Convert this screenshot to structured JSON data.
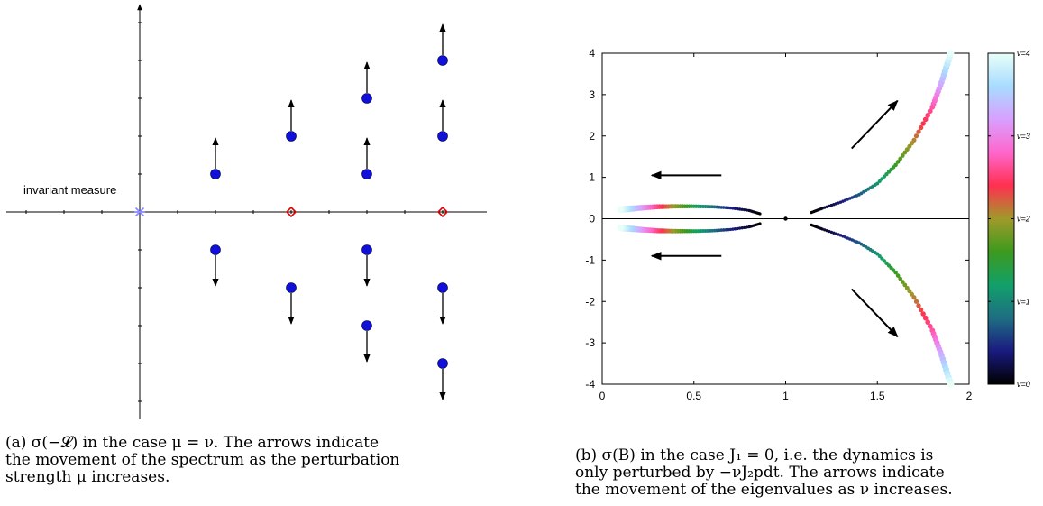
{
  "chart_data": [
    {
      "type": "scatter",
      "title": "",
      "annotation": "invariant measure",
      "invariant_point": {
        "x": 0,
        "y": 0,
        "marker": "asterisk",
        "color": "#8c8cff"
      },
      "real_points": {
        "x": [
          2,
          4
        ],
        "y": [
          0,
          0
        ],
        "marker": "diamond",
        "color": "#e00000"
      },
      "complex_points": {
        "color": "#1010d8",
        "x": [
          1,
          1,
          2,
          2,
          3,
          3,
          3,
          3,
          4,
          4,
          4,
          4
        ],
        "y": [
          1,
          -1,
          2,
          -2,
          1,
          -1,
          3,
          -3,
          2,
          -2,
          4,
          -4
        ]
      },
      "arrow_direction": "away from real axis",
      "xlim": [
        -1.8,
        4.5
      ],
      "ylim": [
        -5.5,
        5.5
      ],
      "grid": false
    },
    {
      "type": "line",
      "xlabel": "",
      "ylabel": "",
      "xlim": [
        0,
        2
      ],
      "ylim": [
        -4,
        4
      ],
      "xticks": [
        "0",
        "0.5",
        "1",
        "1.5",
        "2"
      ],
      "yticks": [
        "-4",
        "-3",
        "-2",
        "-1",
        "0",
        "1",
        "2",
        "3",
        "4"
      ],
      "series": [
        {
          "x": [
            0.86,
            0.8,
            0.7,
            0.6,
            0.5,
            0.4,
            0.3,
            0.2,
            0.1
          ],
          "y": [
            0.12,
            0.2,
            0.26,
            0.29,
            0.3,
            0.3,
            0.29,
            0.26,
            0.22
          ]
        },
        {
          "x": [
            0.86,
            0.8,
            0.7,
            0.6,
            0.5,
            0.4,
            0.3,
            0.2,
            0.1
          ],
          "y": [
            -0.12,
            -0.2,
            -0.26,
            -0.29,
            -0.3,
            -0.3,
            -0.29,
            -0.26,
            -0.22
          ]
        },
        {
          "x": [
            1.14,
            1.2,
            1.3,
            1.4,
            1.5,
            1.6,
            1.7,
            1.8,
            1.85,
            1.9
          ],
          "y": [
            0.15,
            0.25,
            0.4,
            0.58,
            0.85,
            1.3,
            1.9,
            2.7,
            3.3,
            4.0
          ]
        },
        {
          "x": [
            1.14,
            1.2,
            1.3,
            1.4,
            1.5,
            1.6,
            1.7,
            1.8,
            1.85,
            1.9
          ],
          "y": [
            -0.15,
            -0.25,
            -0.4,
            -0.58,
            -0.85,
            -1.3,
            -1.9,
            -2.7,
            -3.3,
            -4.0
          ]
        }
      ],
      "center_point": {
        "x": 1,
        "y": 0
      },
      "arrows": [
        {
          "from": [
            0.65,
            1.05
          ],
          "to": [
            0.27,
            1.05
          ]
        },
        {
          "from": [
            0.65,
            -0.9
          ],
          "to": [
            0.27,
            -0.9
          ]
        },
        {
          "from": [
            1.36,
            1.7
          ],
          "to": [
            1.61,
            2.85
          ]
        },
        {
          "from": [
            1.36,
            -1.7
          ],
          "to": [
            1.61,
            -2.85
          ]
        }
      ],
      "colorbar": {
        "label_prefix": "ν=",
        "ticks": [
          "0",
          "1",
          "2",
          "3",
          "4"
        ],
        "colors": [
          "#000000",
          "#1a1a80",
          "#1e6e82",
          "#12a06a",
          "#3c9a1e",
          "#a09a2a",
          "#ff3050",
          "#ff66cc",
          "#d8a0ff",
          "#a8dcff",
          "#e8fff8"
        ]
      }
    }
  ],
  "captions": {
    "a": "(a) σ(−𝓛) in the case μ = ν. The arrows indicate\nthe movement of the spectrum as the perturbation\nstrength μ increases.",
    "b": "(b) σ(B) in the case J₁ = 0, i.e. the dynamics is\nonly perturbed by −νJ₂pdt. The arrows indicate\nthe movement of the eigenvalues as ν increases."
  }
}
